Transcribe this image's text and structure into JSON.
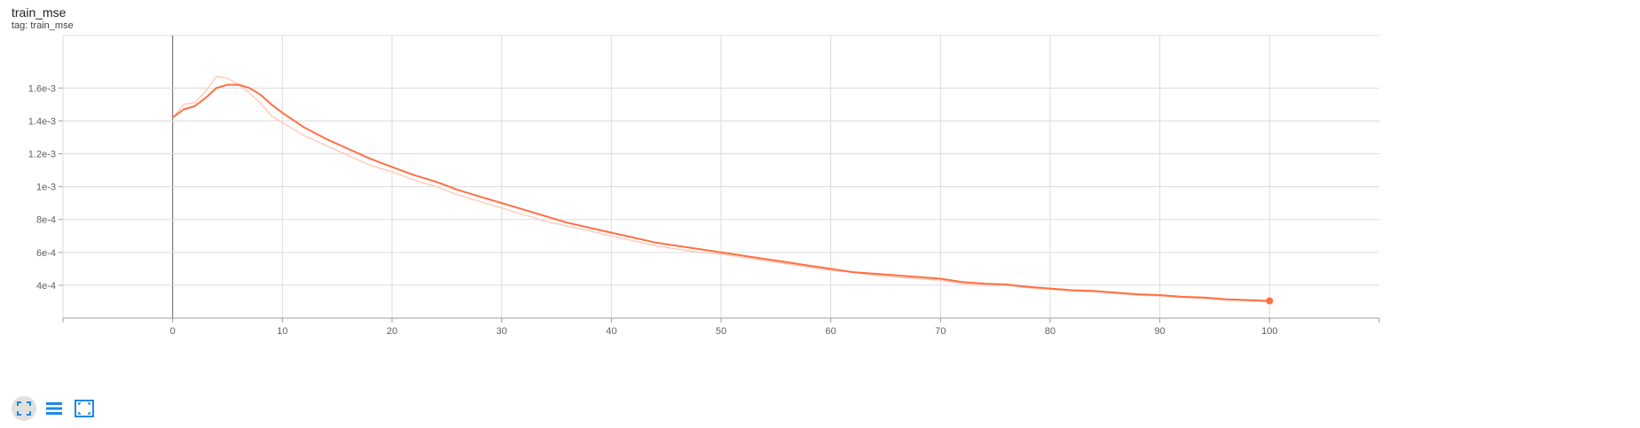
{
  "card": {
    "title": "train_mse",
    "subtitle": "tag: train_mse"
  },
  "toolbar": {
    "buttons": [
      {
        "icon": "fullscreen-icon",
        "active": true
      },
      {
        "icon": "toggle-log-icon",
        "active": false
      },
      {
        "icon": "fit-domain-icon",
        "active": false
      }
    ]
  },
  "colors": {
    "series": "#ff7043",
    "series_raw": "#ffccbc",
    "grid": "#dcdcdc",
    "axis": "#9e9e9e",
    "zero_axis": "#616161",
    "icon": "#1e88e5"
  },
  "chart_data": {
    "type": "line",
    "title": "train_mse",
    "xlabel": "",
    "ylabel": "",
    "xlim": [
      -10,
      110
    ],
    "ylim": [
      0.0002,
      0.00192
    ],
    "grid": true,
    "x_ticks": [
      0,
      10,
      20,
      30,
      40,
      50,
      60,
      70,
      80,
      90,
      100
    ],
    "y_ticks": [
      {
        "value": 0.0004,
        "label": "4e-4"
      },
      {
        "value": 0.0006,
        "label": "6e-4"
      },
      {
        "value": 0.0008,
        "label": "8e-4"
      },
      {
        "value": 0.001,
        "label": "1e-3"
      },
      {
        "value": 0.0012,
        "label": "1.2e-3"
      },
      {
        "value": 0.0014,
        "label": "1.4e-3"
      },
      {
        "value": 0.0016,
        "label": "1.6e-3"
      }
    ],
    "series": [
      {
        "role": "smoothed",
        "x": [
          0,
          1,
          2,
          3,
          4,
          5,
          6,
          7,
          8,
          9,
          10,
          12,
          14,
          16,
          18,
          20,
          22,
          24,
          26,
          28,
          30,
          32,
          34,
          36,
          38,
          40,
          42,
          44,
          46,
          48,
          50,
          52,
          54,
          56,
          58,
          60,
          62,
          64,
          66,
          68,
          70,
          72,
          74,
          76,
          78,
          80,
          82,
          84,
          86,
          88,
          90,
          92,
          94,
          96,
          98,
          100
        ],
        "values": [
          0.00142,
          0.00147,
          0.00149,
          0.00154,
          0.0016,
          0.00162,
          0.00162,
          0.0016,
          0.00156,
          0.0015,
          0.00145,
          0.00136,
          0.00129,
          0.00123,
          0.00117,
          0.00112,
          0.00107,
          0.00103,
          0.00098,
          0.00094,
          0.0009,
          0.00086,
          0.00082,
          0.00078,
          0.00075,
          0.00072,
          0.00069,
          0.00066,
          0.00064,
          0.00062,
          0.0006,
          0.00058,
          0.00056,
          0.00054,
          0.00052,
          0.0005,
          0.00048,
          0.00047,
          0.00046,
          0.00045,
          0.00044,
          0.00042,
          0.00041,
          0.000405,
          0.00039,
          0.00038,
          0.00037,
          0.000365,
          0.000355,
          0.000345,
          0.00034,
          0.00033,
          0.000325,
          0.000315,
          0.00031,
          0.000305
        ]
      },
      {
        "role": "raw",
        "x": [
          0,
          1,
          2,
          3,
          4,
          5,
          6,
          7,
          8,
          9,
          10,
          12,
          14,
          16,
          18,
          20,
          22,
          24,
          26,
          28,
          30,
          32,
          34,
          36,
          38,
          40,
          42,
          44,
          46,
          48,
          50,
          52,
          54,
          56,
          58,
          60,
          62,
          64,
          66,
          68,
          70,
          72,
          74,
          76,
          78,
          80,
          82,
          84,
          86,
          88,
          90,
          92,
          94,
          96,
          98,
          100
        ],
        "values": [
          0.00142,
          0.0015,
          0.00151,
          0.00158,
          0.00167,
          0.00166,
          0.00162,
          0.00157,
          0.00151,
          0.00143,
          0.00139,
          0.00131,
          0.00125,
          0.00119,
          0.00113,
          0.00109,
          0.00104,
          0.001,
          0.00095,
          0.00091,
          0.00087,
          0.00083,
          0.00079,
          0.00076,
          0.00073,
          0.0007,
          0.00067,
          0.00064,
          0.00062,
          0.0006,
          0.00059,
          0.00057,
          0.00055,
          0.00053,
          0.00051,
          0.00049,
          0.00048,
          0.00046,
          0.00045,
          0.00044,
          0.00043,
          0.00041,
          0.0004,
          0.0004,
          0.000385,
          0.000375,
          0.000365,
          0.00036,
          0.00035,
          0.00034,
          0.000335,
          0.000325,
          0.00032,
          0.00031,
          0.000305,
          0.0003
        ]
      }
    ],
    "end_marker": {
      "x": 100,
      "y": 0.000305
    }
  }
}
